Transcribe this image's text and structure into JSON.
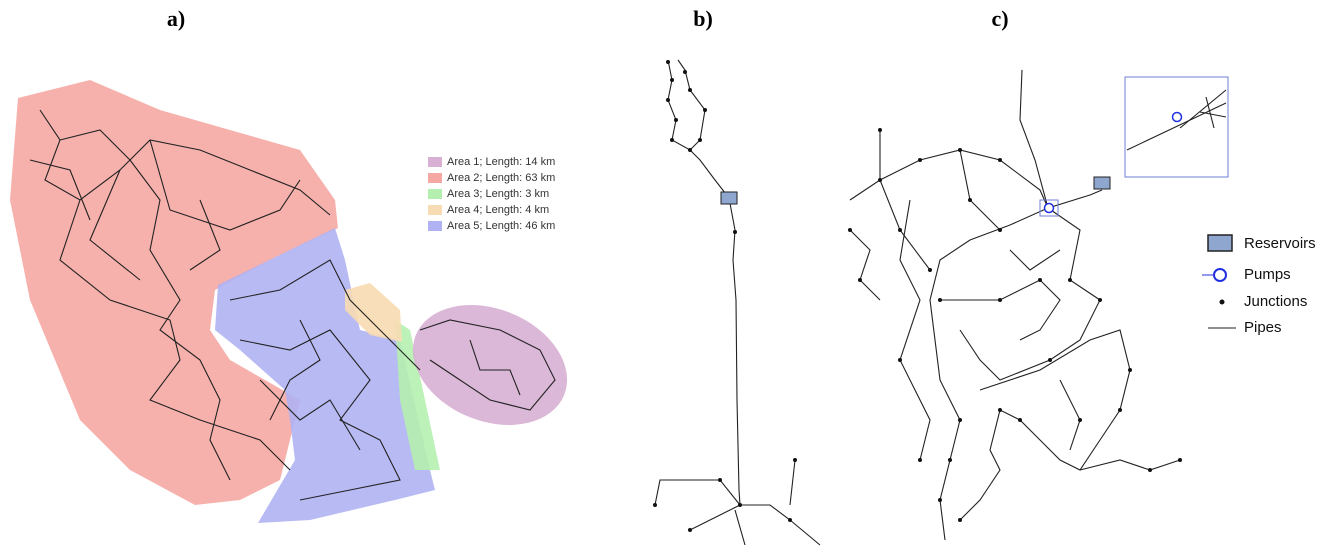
{
  "panels": [
    {
      "label": "a)",
      "legend": [
        {
          "text": "Area 1; Length: 14 km",
          "color": "#d8b0d4"
        },
        {
          "text": "Area 2; Length: 63 km",
          "color": "#f5a8a3"
        },
        {
          "text": "Area 3; Length: 3 km",
          "color": "#b5efb0"
        },
        {
          "text": "Area 4; Length: 4 km",
          "color": "#f7dbb3"
        },
        {
          "text": "Area 5; Length: 46 km",
          "color": "#b0b2f3"
        }
      ]
    },
    {
      "label": "b)"
    },
    {
      "label": "c)",
      "legend": [
        {
          "text": "Reservoirs"
        },
        {
          "text": "Pumps"
        },
        {
          "text": "Junctions"
        },
        {
          "text": "Pipes"
        }
      ]
    }
  ]
}
